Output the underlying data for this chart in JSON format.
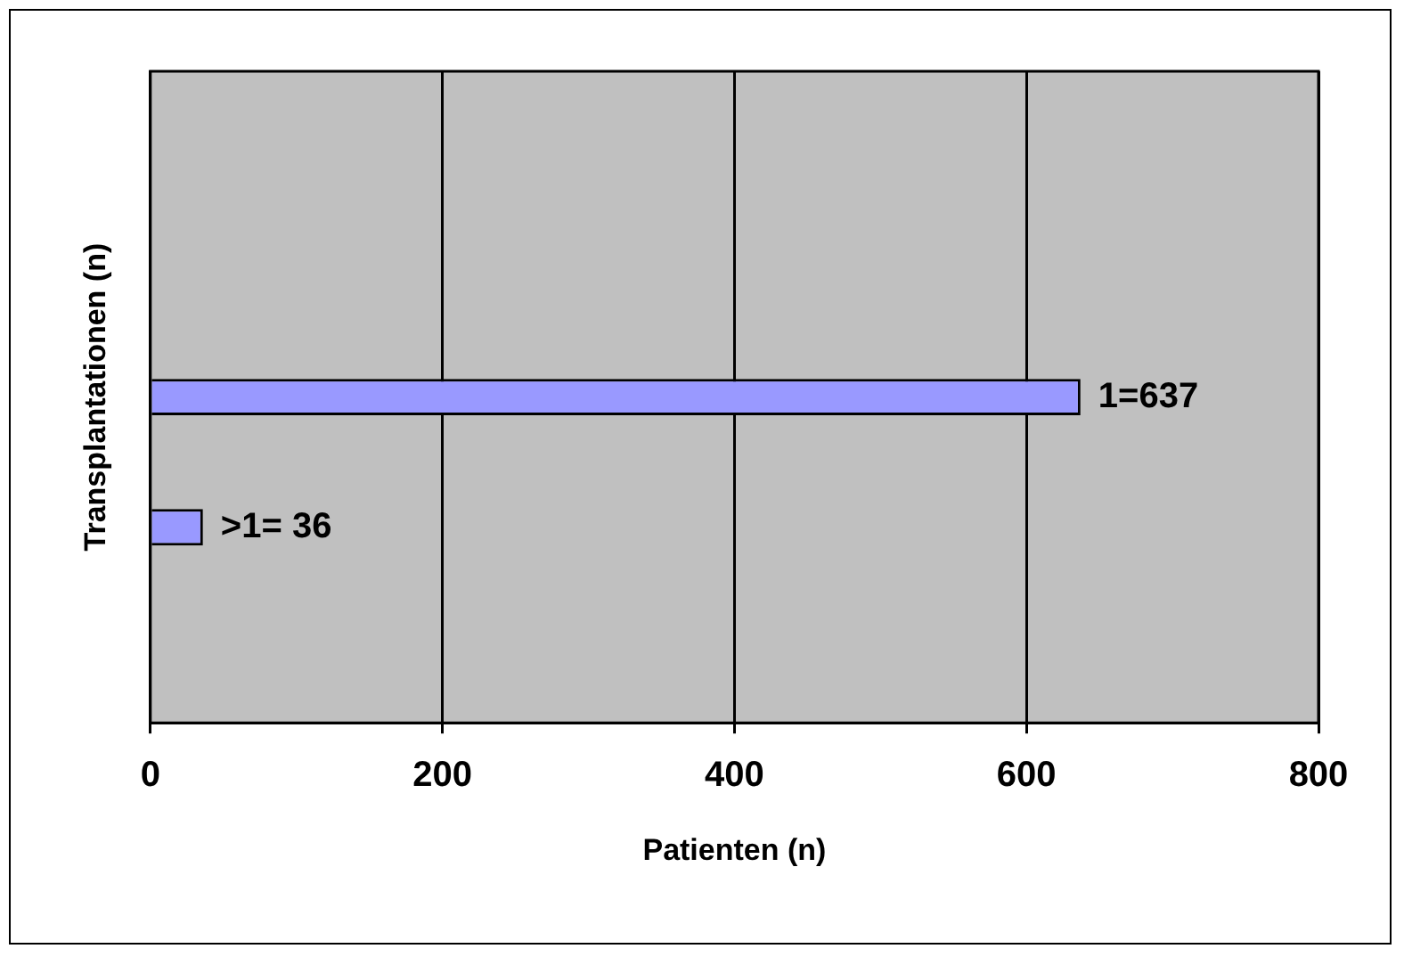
{
  "chart_data": {
    "type": "bar",
    "orientation": "horizontal",
    "xlabel": "Patienten (n)",
    "ylabel": "Transplantationen (n)",
    "categories": [
      null,
      null,
      null,
      null,
      null
    ],
    "values": [
      null,
      null,
      637,
      36,
      0
    ],
    "value_labels": [
      null,
      null,
      "1=637",
      ">1= 36",
      null
    ],
    "color": "#9999ff",
    "xlim": [
      0,
      800
    ],
    "xticks": [
      0,
      200,
      400,
      600,
      800
    ],
    "grid": "x",
    "legend": false,
    "tick_labels": "x"
  }
}
